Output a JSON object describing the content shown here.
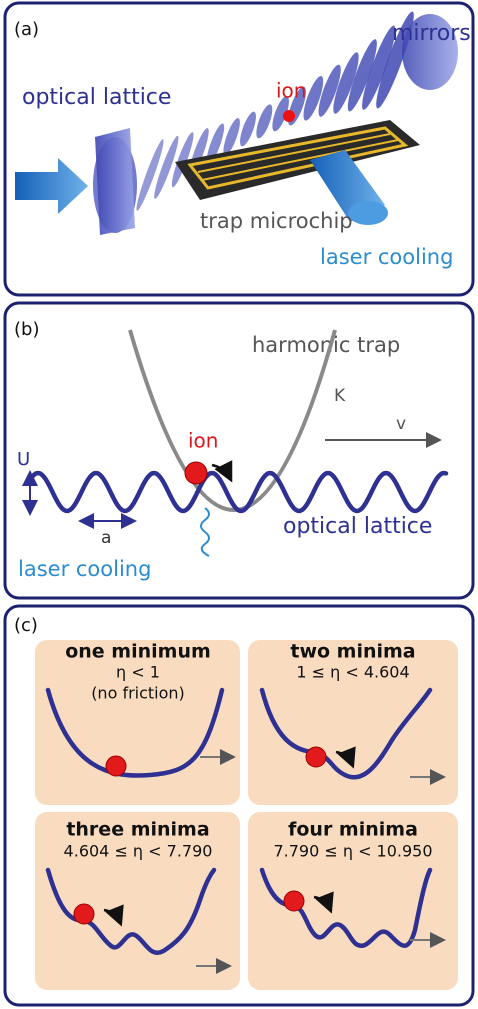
{
  "panel_a": {
    "label": "(a)",
    "mirrors": "mirrors",
    "ion": "ion",
    "optical_lattice": "optical lattice",
    "trap_microchip": "trap microchip",
    "laser_cooling": "laser cooling"
  },
  "panel_b": {
    "label": "(b)",
    "harmonic_trap": "harmonic trap",
    "k": "K",
    "v": "v",
    "ion": "ion",
    "u": "U",
    "a": "a",
    "optical_lattice": "optical lattice",
    "laser_cooling": "laser cooling"
  },
  "panel_c": {
    "label": "(c)",
    "boxes": [
      {
        "title": "one minimum",
        "condition": "η < 1",
        "note": "(no friction)"
      },
      {
        "title": "two minima",
        "condition": "1 ≤ η < 4.604"
      },
      {
        "title": "three minima",
        "condition": "4.604 ≤ η < 7.790"
      },
      {
        "title": "four minima",
        "condition": "7.790 ≤ η < 10.950"
      }
    ]
  }
}
